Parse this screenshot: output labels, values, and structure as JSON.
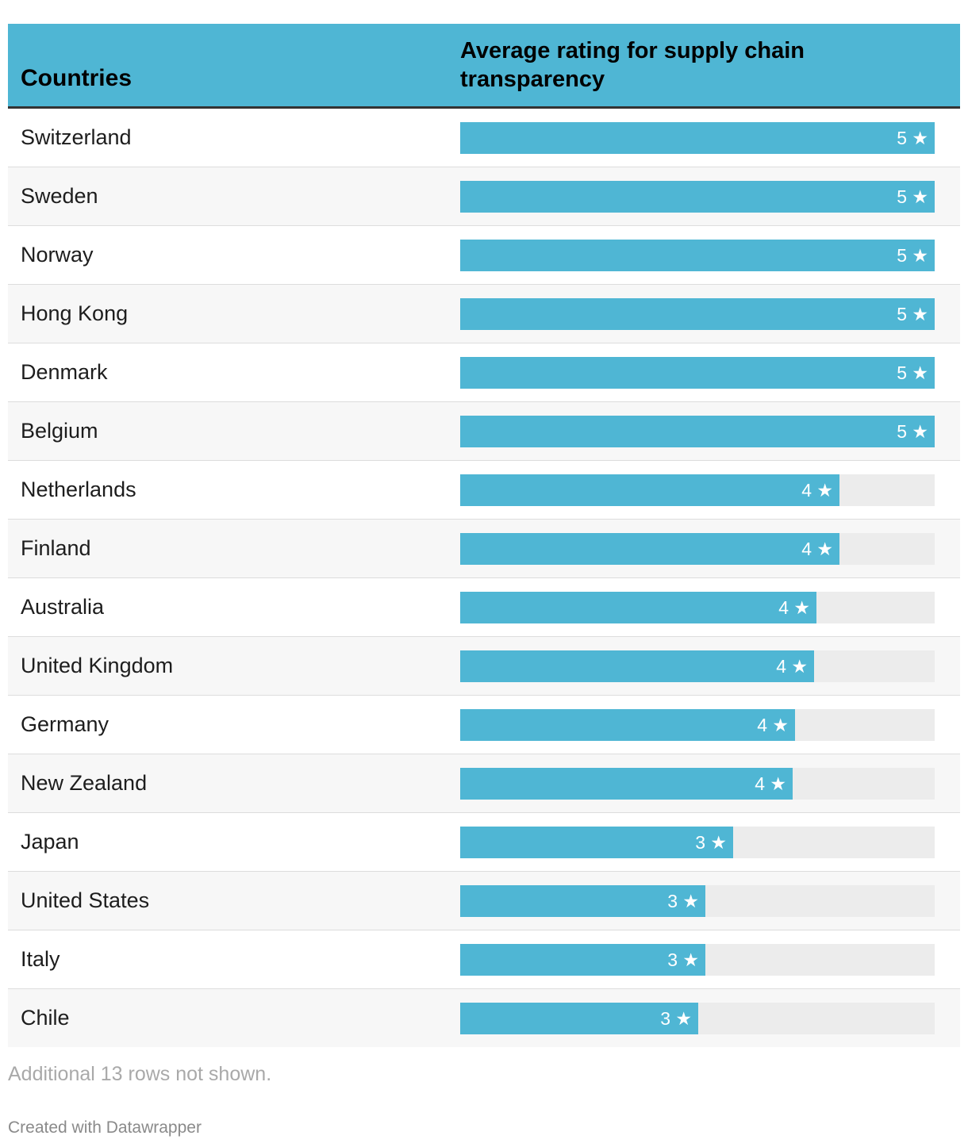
{
  "chart_data": {
    "type": "table",
    "columns": [
      "Countries",
      "Average rating for supply chain transparency"
    ],
    "max_value": 5,
    "rows": [
      {
        "country": "Switzerland",
        "rating": 5,
        "label": "5 ★"
      },
      {
        "country": "Sweden",
        "rating": 5,
        "label": "5 ★"
      },
      {
        "country": "Norway",
        "rating": 5,
        "label": "5 ★"
      },
      {
        "country": "Hong Kong",
        "rating": 5,
        "label": "5 ★"
      },
      {
        "country": "Denmark",
        "rating": 5,
        "label": "5 ★"
      },
      {
        "country": "Belgium",
        "rating": 5,
        "label": "5 ★"
      },
      {
        "country": "Netherlands",
        "rating": 4,
        "label": "4 ★"
      },
      {
        "country": "Finland",
        "rating": 4,
        "label": "4 ★"
      },
      {
        "country": "Australia",
        "rating": 3.75,
        "label": "4 ★"
      },
      {
        "country": "United Kingdom",
        "rating": 3.73,
        "label": "4 ★"
      },
      {
        "country": "Germany",
        "rating": 3.53,
        "label": "4 ★"
      },
      {
        "country": "New Zealand",
        "rating": 3.5,
        "label": "4 ★"
      },
      {
        "country": "Japan",
        "rating": 2.88,
        "label": "3 ★"
      },
      {
        "country": "United States",
        "rating": 2.58,
        "label": "3 ★"
      },
      {
        "country": "Italy",
        "rating": 2.58,
        "label": "3 ★"
      },
      {
        "country": "Chile",
        "rating": 2.51,
        "label": "3 ★"
      }
    ],
    "colors": {
      "bar": "#4fb6d4",
      "track": "#ececec",
      "header_bg": "#4fb6d4"
    }
  },
  "footer": {
    "note": "Additional 13 rows not shown.",
    "credit": "Created with Datawrapper"
  }
}
